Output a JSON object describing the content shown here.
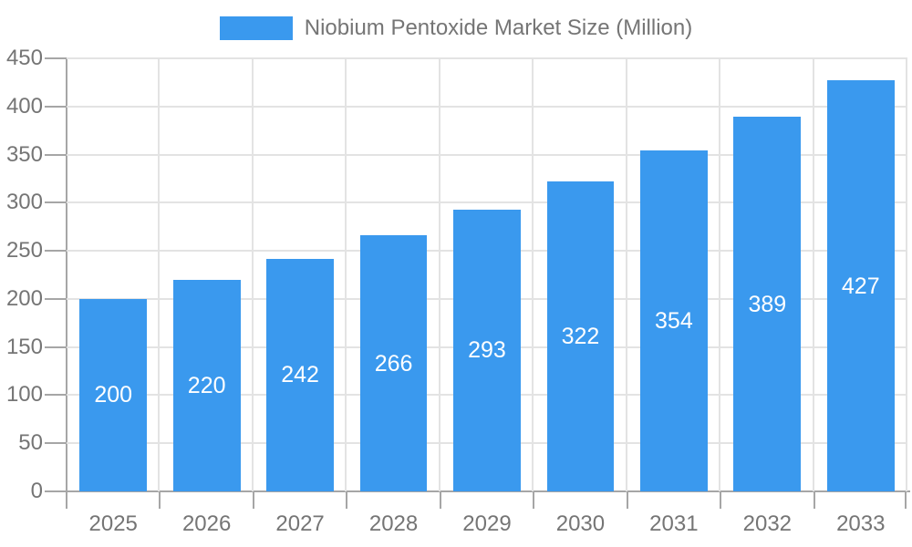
{
  "chart_data": {
    "type": "bar",
    "title": "Niobium Pentoxide Market Size (Million)",
    "categories": [
      "2025",
      "2026",
      "2027",
      "2028",
      "2029",
      "2030",
      "2031",
      "2032",
      "2033"
    ],
    "values": [
      200,
      220,
      242,
      266,
      293,
      322,
      354,
      389,
      427
    ],
    "series": [
      {
        "name": "Niobium Pentoxide Market Size (Million)",
        "values": [
          200,
          220,
          242,
          266,
          293,
          322,
          354,
          389,
          427
        ]
      }
    ],
    "yticks": [
      0,
      50,
      100,
      150,
      200,
      250,
      300,
      350,
      400,
      450
    ],
    "ylim": [
      0,
      450
    ],
    "xlabel": "",
    "ylabel": "",
    "grid": true,
    "legend_position": "top",
    "value_labels": "inside-center",
    "colors": {
      "bar": "#3A99EE",
      "value_label": "#FFFFFF",
      "axis_text": "#757575",
      "grid": "#E3E3E3",
      "axis_line": "#A6A6A6"
    }
  }
}
